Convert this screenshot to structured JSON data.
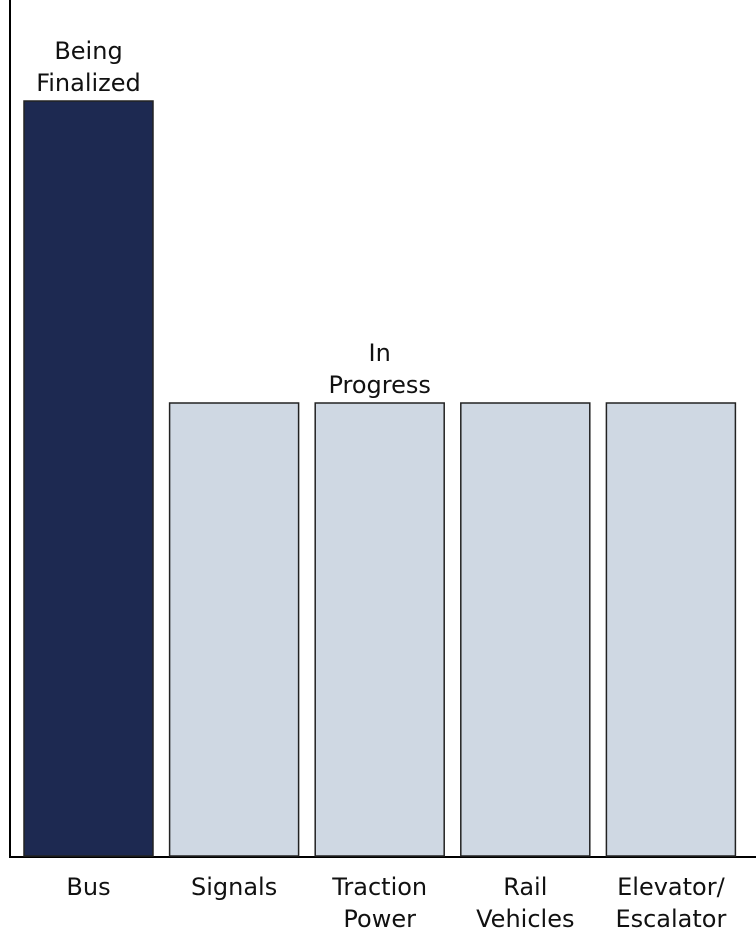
{
  "chart_data": {
    "type": "bar",
    "categories": [
      [
        "Bus"
      ],
      [
        "Signals"
      ],
      [
        "Traction",
        "Power"
      ],
      [
        "Rail",
        "Vehicles"
      ],
      [
        "Elevator/",
        "Escalator"
      ]
    ],
    "values": [
      100,
      60,
      60,
      60,
      60
    ],
    "ylim": [
      0,
      105
    ],
    "grid": false,
    "legend": "none",
    "bar_colors": [
      "#1d2951",
      "#cfd8e3",
      "#cfd8e3",
      "#cfd8e3",
      "#cfd8e3"
    ],
    "annotations": [
      {
        "lines": [
          "Being",
          "Finalized"
        ],
        "anchor_category": 0
      },
      {
        "lines": [
          "In",
          "Progress"
        ],
        "anchor_category": 2
      }
    ]
  }
}
